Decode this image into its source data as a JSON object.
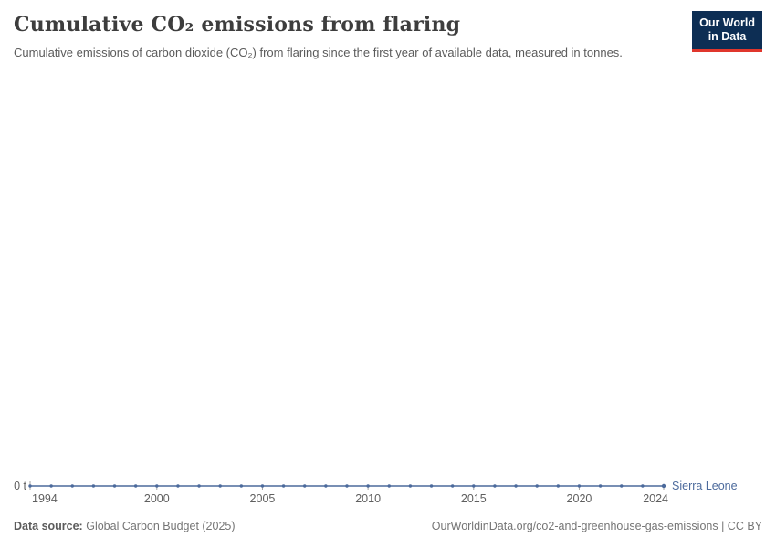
{
  "header": {
    "title": "Cumulative CO₂ emissions from flaring",
    "subtitle": "Cumulative emissions of carbon dioxide (CO₂) from flaring since the first year of available data, measured in tonnes."
  },
  "logo": {
    "line1": "Our World",
    "line2": "in Data",
    "background_color": "#0d2e54",
    "accent_color": "#e0362c"
  },
  "chart_data": {
    "type": "line",
    "title": "Cumulative CO₂ emissions from flaring",
    "xlabel": "",
    "ylabel": "",
    "unit": "t",
    "grid": false,
    "legend_position": "end-of-line",
    "xlim": [
      1994,
      2024
    ],
    "ylim": [
      0,
      0
    ],
    "x": [
      1994,
      1995,
      1996,
      1997,
      1998,
      1999,
      2000,
      2001,
      2002,
      2003,
      2004,
      2005,
      2006,
      2007,
      2008,
      2009,
      2010,
      2011,
      2012,
      2013,
      2014,
      2015,
      2016,
      2017,
      2018,
      2019,
      2020,
      2021,
      2022,
      2023,
      2024
    ],
    "series": [
      {
        "name": "Sierra Leone",
        "color": "#4C6A9C",
        "values": [
          0,
          0,
          0,
          0,
          0,
          0,
          0,
          0,
          0,
          0,
          0,
          0,
          0,
          0,
          0,
          0,
          0,
          0,
          0,
          0,
          0,
          0,
          0,
          0,
          0,
          0,
          0,
          0,
          0,
          0,
          0
        ]
      }
    ],
    "x_ticks": [
      1994,
      2000,
      2005,
      2010,
      2015,
      2020,
      2024
    ],
    "y_ticks": [
      {
        "value": 0,
        "label": "0 t"
      }
    ]
  },
  "footer": {
    "source_label": "Data source:",
    "source_value": "Global Carbon Budget (2025)",
    "credit": "OurWorldinData.org/co2-and-greenhouse-gas-emissions | CC BY"
  }
}
